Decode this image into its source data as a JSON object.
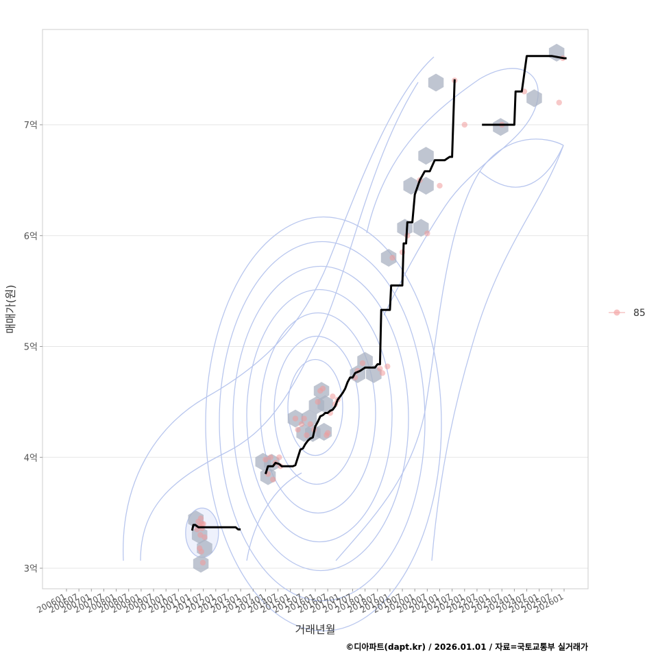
{
  "chart_data": {
    "type": "scatter",
    "title": "",
    "xlabel": "거래년월",
    "ylabel": "매매가(원)",
    "caption": "©디아파트(dapt.kr) / 2026.01.01 / 자료=국토교통부 실거래가",
    "x_domain": [
      2006.0,
      2026.0
    ],
    "ylim": [
      2.8,
      7.85
    ],
    "y_ticks": [
      {
        "value": 3,
        "label": "3억"
      },
      {
        "value": 4,
        "label": "4억"
      },
      {
        "value": 5,
        "label": "5억"
      },
      {
        "value": 6,
        "label": "6억"
      },
      {
        "value": 7,
        "label": "7억"
      }
    ],
    "x_tick_labels": [
      "200601",
      "200607",
      "200701",
      "200707",
      "200801",
      "200807",
      "200901",
      "200907",
      "201001",
      "201007",
      "201101",
      "201107",
      "201201",
      "201207",
      "201301",
      "201307",
      "201401",
      "201407",
      "201501",
      "201507",
      "201601",
      "201607",
      "201701",
      "201707",
      "201801",
      "201807",
      "201901",
      "201907",
      "202001",
      "202007",
      "202101",
      "202107",
      "202201",
      "202207",
      "202301",
      "202307",
      "202401",
      "202407",
      "202501",
      "202507",
      "202601"
    ],
    "legend": {
      "position": "right",
      "entries": [
        {
          "label": "85",
          "color": "#f4a6a6"
        }
      ]
    },
    "colors": {
      "points": "#f09a9a",
      "hex": "#a9b2c1",
      "contour": "#b8c6ee",
      "line": "#000000",
      "grid": "#e5e5e5",
      "panel_border": "#cccccc"
    },
    "series": [
      {
        "name": "85",
        "kind": "points",
        "x": [
          2011.25,
          2011.35,
          2011.45,
          2011.3,
          2011.4,
          2011.5,
          2011.35,
          2011.42,
          2011.55,
          2011.48,
          2011.38,
          2011.45,
          2014.0,
          2014.1,
          2014.2,
          2014.3,
          2014.4,
          2014.55,
          2014.6,
          2015.2,
          2015.3,
          2015.45,
          2015.55,
          2015.65,
          2015.8,
          2015.95,
          2016.1,
          2016.2,
          2016.3,
          2016.45,
          2016.5,
          2016.6,
          2016.7,
          2016.8,
          2016.9,
          2017.6,
          2017.7,
          2017.9,
          2018.6,
          2018.7,
          2018.9,
          2019.1,
          2019.5,
          2019.7,
          2020.2,
          2020.5,
          2021.0,
          2021.6,
          2022.0,
          2023.5,
          2024.4,
          2025.8,
          2025.95
        ],
        "y": [
          3.35,
          3.38,
          3.4,
          3.42,
          3.45,
          3.4,
          3.18,
          3.15,
          3.28,
          3.05,
          3.3,
          3.36,
          3.98,
          3.85,
          4.0,
          3.8,
          3.95,
          4.0,
          3.92,
          4.35,
          4.25,
          4.3,
          4.35,
          4.2,
          4.3,
          4.25,
          4.5,
          4.6,
          4.62,
          4.2,
          4.22,
          4.4,
          4.55,
          4.48,
          4.52,
          4.72,
          4.78,
          4.85,
          4.8,
          4.76,
          4.82,
          5.8,
          5.85,
          6.0,
          6.5,
          6.02,
          6.45,
          7.4,
          7.0,
          7.0,
          7.3,
          7.2,
          7.6
        ]
      },
      {
        "name": "moving-median",
        "kind": "line",
        "segments": [
          {
            "x": [
              2011.05,
              2011.1,
              2011.18,
              2011.3,
              2011.5,
              2011.7,
              2012.0,
              2012.3,
              2012.6,
              2012.8,
              2012.9,
              2013.0
            ],
            "y": [
              3.34,
              3.39,
              3.39,
              3.37,
              3.37,
              3.37,
              3.37,
              3.37,
              3.37,
              3.37,
              3.35,
              3.35
            ]
          },
          {
            "x": [
              2014.0,
              2014.1,
              2014.3,
              2014.4,
              2014.55,
              2014.65,
              2014.8,
              2015.0,
              2015.1,
              2015.2,
              2015.4,
              2015.5,
              2015.6,
              2015.7,
              2015.8,
              2015.9,
              2016.0,
              2016.1,
              2016.2,
              2016.3,
              2016.4,
              2016.5,
              2016.6,
              2016.7,
              2016.8,
              2016.9,
              2017.0,
              2017.1,
              2017.2,
              2017.3,
              2017.4,
              2017.5,
              2017.6,
              2017.8,
              2018.0,
              2018.2,
              2018.4,
              2018.5,
              2018.6,
              2018.65,
              2018.8,
              2019.0,
              2019.05,
              2019.3,
              2019.4,
              2019.5,
              2019.55,
              2019.65,
              2019.7,
              2019.9,
              2020.0,
              2020.2,
              2020.4,
              2020.6,
              2020.8,
              2021.0,
              2021.2,
              2021.4,
              2021.5,
              2021.6
            ],
            "y": [
              3.85,
              3.92,
              3.92,
              3.95,
              3.94,
              3.92,
              3.92,
              3.92,
              3.92,
              3.93,
              4.07,
              4.08,
              4.12,
              4.15,
              4.17,
              4.18,
              4.28,
              4.32,
              4.37,
              4.38,
              4.4,
              4.4,
              4.42,
              4.43,
              4.46,
              4.52,
              4.55,
              4.58,
              4.62,
              4.68,
              4.72,
              4.72,
              4.76,
              4.78,
              4.81,
              4.81,
              4.81,
              4.84,
              4.84,
              5.33,
              5.33,
              5.33,
              5.55,
              5.55,
              5.55,
              5.55,
              5.93,
              5.93,
              6.12,
              6.12,
              6.37,
              6.5,
              6.58,
              6.58,
              6.68,
              6.68,
              6.68,
              6.71,
              6.71,
              7.41
            ]
          },
          {
            "x": [
              2022.7,
              2023.0,
              2023.5,
              2024.0,
              2024.05,
              2024.3,
              2024.5,
              2024.55,
              2025.0,
              2025.5,
              2026.0,
              2026.1
            ],
            "y": [
              7.0,
              7.0,
              7.0,
              7.0,
              7.3,
              7.3,
              7.62,
              7.62,
              7.62,
              7.62,
              7.6,
              7.6
            ]
          }
        ]
      }
    ],
    "hexbins": [
      {
        "x": 2011.2,
        "y": 3.44
      },
      {
        "x": 2011.35,
        "y": 3.3
      },
      {
        "x": 2011.55,
        "y": 3.18
      },
      {
        "x": 2011.4,
        "y": 3.04
      },
      {
        "x": 2013.9,
        "y": 3.96
      },
      {
        "x": 2014.25,
        "y": 3.95
      },
      {
        "x": 2014.1,
        "y": 3.83
      },
      {
        "x": 2015.2,
        "y": 4.35
      },
      {
        "x": 2015.55,
        "y": 4.22
      },
      {
        "x": 2015.9,
        "y": 4.22
      },
      {
        "x": 2016.35,
        "y": 4.23
      },
      {
        "x": 2015.75,
        "y": 4.35
      },
      {
        "x": 2016.05,
        "y": 4.47
      },
      {
        "x": 2016.4,
        "y": 4.48
      },
      {
        "x": 2016.25,
        "y": 4.6
      },
      {
        "x": 2017.7,
        "y": 4.75
      },
      {
        "x": 2018.0,
        "y": 4.87
      },
      {
        "x": 2018.35,
        "y": 4.75
      },
      {
        "x": 2018.95,
        "y": 5.8
      },
      {
        "x": 2019.6,
        "y": 6.07
      },
      {
        "x": 2020.25,
        "y": 6.07
      },
      {
        "x": 2019.85,
        "y": 6.45
      },
      {
        "x": 2020.45,
        "y": 6.45
      },
      {
        "x": 2020.45,
        "y": 6.72
      },
      {
        "x": 2020.85,
        "y": 7.38
      },
      {
        "x": 2023.45,
        "y": 6.98
      },
      {
        "x": 2024.8,
        "y": 7.24
      },
      {
        "x": 2025.7,
        "y": 7.65
      }
    ]
  }
}
